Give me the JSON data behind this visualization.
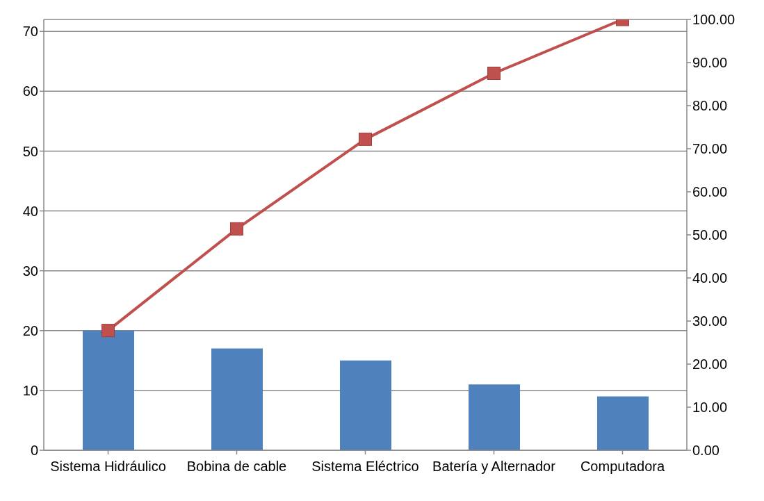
{
  "chart_data": {
    "type": "bar",
    "categories": [
      "Sistema Hidráulico",
      "Bobina de cable",
      "Sistema Eléctrico",
      "Batería y Alternador",
      "Computadora"
    ],
    "series": [
      {
        "color": "#4f81bd",
        "values": [
          20,
          17,
          15,
          11,
          9
        ]
      },
      {
        "type": "line",
        "axis": "y2",
        "color": "#c0504d",
        "values": [
          27.8,
          51.4,
          72.2,
          87.5,
          100
        ],
        "marker": "square"
      }
    ],
    "ylim": [
      0,
      72
    ],
    "yticks": [
      0,
      10,
      20,
      30,
      40,
      50,
      60,
      70
    ],
    "y2lim": [
      0,
      100
    ],
    "y2ticks": [
      {
        "value": 0,
        "label": "0.00"
      },
      {
        "value": 10,
        "label": "10.00"
      },
      {
        "value": 20,
        "label": "20.00"
      },
      {
        "value": 30,
        "label": "30.00"
      },
      {
        "value": 40,
        "label": "40.00"
      },
      {
        "value": 50,
        "label": "50.00"
      },
      {
        "value": 60,
        "label": "60.00"
      },
      {
        "value": 70,
        "label": "70.00"
      },
      {
        "value": 80,
        "label": "80.00"
      },
      {
        "value": 90,
        "label": "90.00"
      },
      {
        "value": 100,
        "label": "100.00"
      }
    ],
    "grid": "y",
    "legend": false
  }
}
